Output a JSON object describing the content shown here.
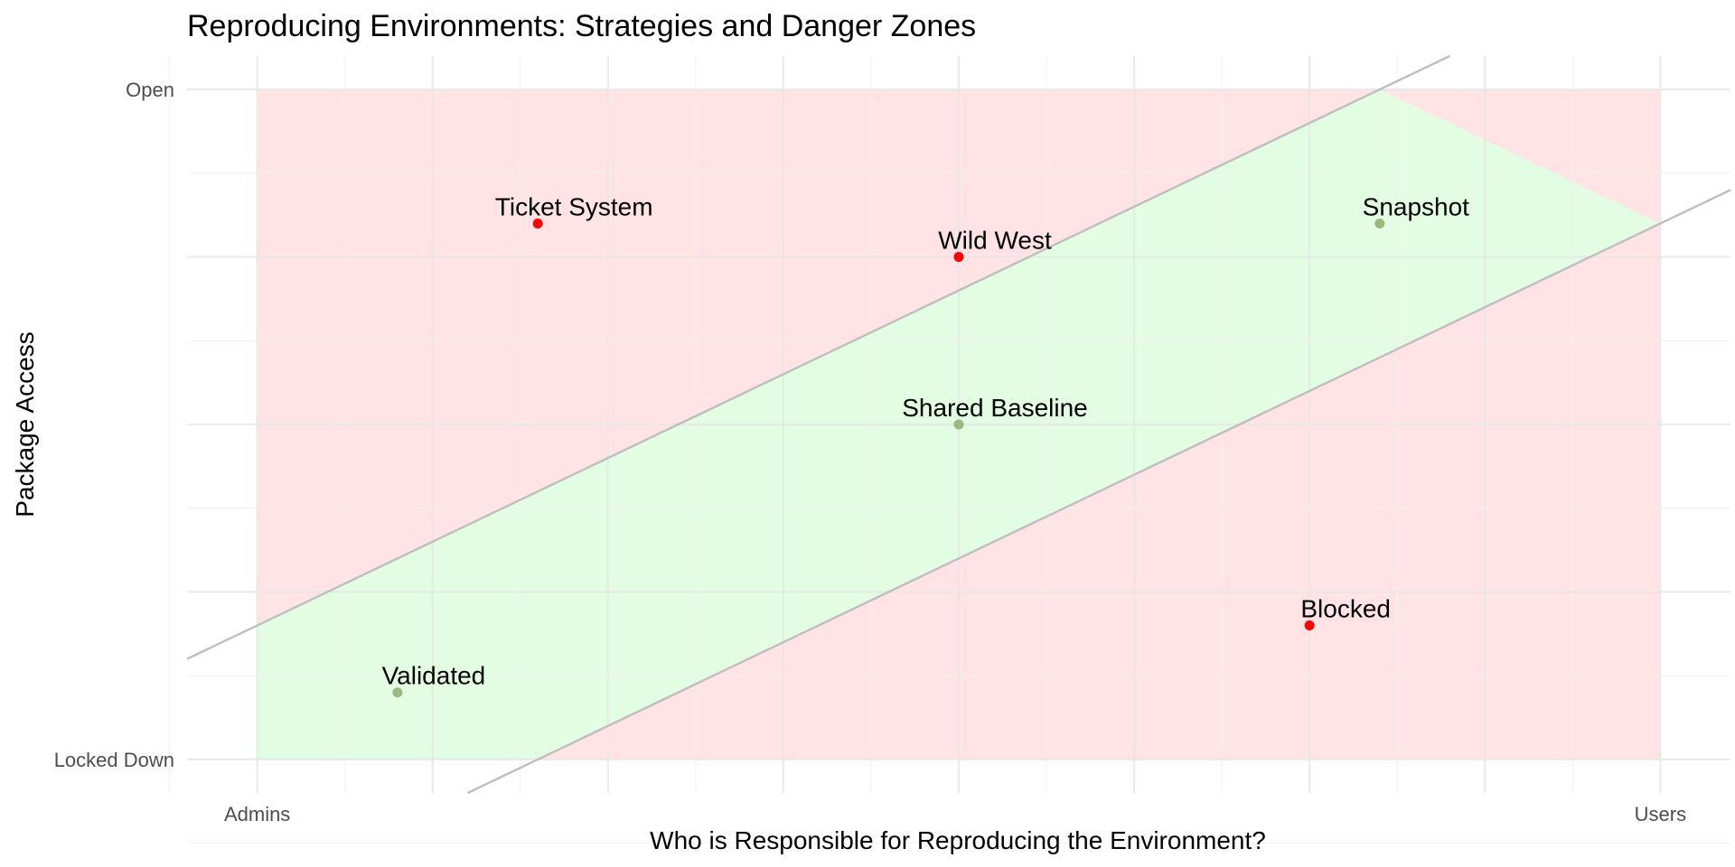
{
  "chart_data": {
    "type": "scatter",
    "title": "Reproducing Environments: Strategies and Danger Zones",
    "xlabel": "Who is Responsible for Reproducing the Environment?",
    "ylabel": "Package Access",
    "xlim": [
      -0.2,
      4.2
    ],
    "ylim": [
      -0.1,
      2.1
    ],
    "x_ticks": [
      {
        "value": 0,
        "label": "Admins"
      },
      {
        "value": 4,
        "label": "Users"
      }
    ],
    "y_ticks": [
      {
        "value": 0,
        "label": "Locked Down"
      },
      {
        "value": 2,
        "label": "Open"
      }
    ],
    "points": [
      {
        "label": "Ticket System",
        "x": 0.8,
        "y": 1.6,
        "zone": "danger"
      },
      {
        "label": "Wild West",
        "x": 2.0,
        "y": 1.5,
        "zone": "danger"
      },
      {
        "label": "Snapshot",
        "x": 3.2,
        "y": 1.6,
        "zone": "safe"
      },
      {
        "label": "Shared Baseline",
        "x": 2.0,
        "y": 1.0,
        "zone": "safe"
      },
      {
        "label": "Blocked",
        "x": 3.0,
        "y": 0.4,
        "zone": "danger"
      },
      {
        "label": "Validated",
        "x": 0.4,
        "y": 0.2,
        "zone": "safe"
      }
    ],
    "safe_zone_polygon": [
      [
        0,
        0
      ],
      [
        0,
        0.4
      ],
      [
        3.2,
        2.0
      ],
      [
        4.0,
        1.6
      ],
      [
        4.0,
        1.6
      ],
      [
        0.8,
        0
      ]
    ],
    "boundary_lines": [
      {
        "intercept": 0.4,
        "slope": 0.5
      },
      {
        "intercept": -0.4,
        "slope": 0.5
      }
    ],
    "grid": true,
    "colors": {
      "danger_zone": "#ffe3e5",
      "safe_zone": "#e2fde2",
      "danger_point": "#ff0000",
      "safe_point": "#9cb97f",
      "boundary_line": "#bfbfbf",
      "grid_major": "#e6e6e6",
      "grid_minor": "#f0f0f0"
    }
  }
}
